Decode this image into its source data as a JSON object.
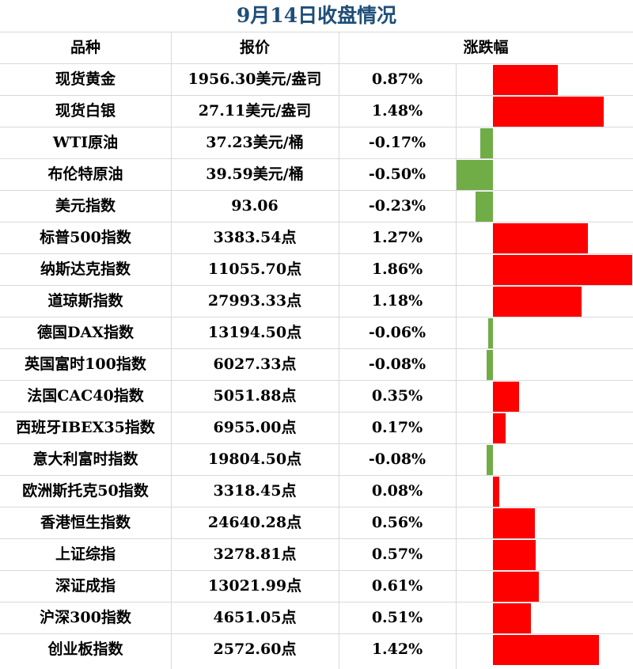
{
  "title": "9月14日收盘情况",
  "headers": {
    "name": "品种",
    "price": "报价",
    "change": "涨跌幅"
  },
  "colors": {
    "up": "#ff0000",
    "down": "#70ad47",
    "title": "#1f4e79",
    "grid": "#d9d9d9"
  },
  "rows": [
    {
      "name": "现货黄金",
      "price": "1956.30美元/盎司",
      "change": "0.87%"
    },
    {
      "name": "现货白银",
      "price": "27.11美元/盎司",
      "change": "1.48%"
    },
    {
      "name": "WTI原油",
      "price": "37.23美元/桶",
      "change": "-0.17%"
    },
    {
      "name": "布伦特原油",
      "price": "39.59美元/桶",
      "change": "-0.50%"
    },
    {
      "name": "美元指数",
      "price": "93.06",
      "change": "-0.23%"
    },
    {
      "name": "标普500指数",
      "price": "3383.54点",
      "change": "1.27%"
    },
    {
      "name": "纳斯达克指数",
      "price": "11055.70点",
      "change": "1.86%"
    },
    {
      "name": "道琼斯指数",
      "price": "27993.33点",
      "change": "1.18%"
    },
    {
      "name": "德国DAX指数",
      "price": "13194.50点",
      "change": "-0.06%"
    },
    {
      "name": "英国富时100指数",
      "price": "6027.33点",
      "change": "-0.08%"
    },
    {
      "name": "法国CAC40指数",
      "price": "5051.88点",
      "change": "0.35%"
    },
    {
      "name": "西班牙IBEX35指数",
      "price": "6955.00点",
      "change": "0.17%"
    },
    {
      "name": "意大利富时指数",
      "price": "19804.50点",
      "change": "-0.08%"
    },
    {
      "name": "欧洲斯托克50指数",
      "price": "3318.45点",
      "change": "0.08%"
    },
    {
      "name": "香港恒生指数",
      "price": "24640.28点",
      "change": "0.56%"
    },
    {
      "name": "上证综指",
      "price": "3278.81点",
      "change": "0.57%"
    },
    {
      "name": "深证成指",
      "price": "13021.99点",
      "change": "0.61%"
    },
    {
      "name": "沪深300指数",
      "price": "4651.05点",
      "change": "0.51%"
    },
    {
      "name": "创业板指数",
      "price": "2572.60点",
      "change": "1.42%"
    }
  ],
  "chart_data": {
    "type": "bar",
    "orientation": "horizontal",
    "categories": [
      "现货黄金",
      "现货白银",
      "WTI原油",
      "布伦特原油",
      "美元指数",
      "标普500指数",
      "纳斯达克指数",
      "道琼斯指数",
      "德国DAX指数",
      "英国富时100指数",
      "法国CAC40指数",
      "西班牙IBEX35指数",
      "意大利富时指数",
      "欧洲斯托克50指数",
      "香港恒生指数",
      "上证综指",
      "深证成指",
      "沪深300指数",
      "创业板指数"
    ],
    "values": [
      0.87,
      1.48,
      -0.17,
      -0.5,
      -0.23,
      1.27,
      1.86,
      1.18,
      -0.06,
      -0.08,
      0.35,
      0.17,
      -0.08,
      0.08,
      0.56,
      0.57,
      0.61,
      0.51,
      1.42
    ],
    "xlim": [
      -0.5,
      1.86
    ]
  }
}
